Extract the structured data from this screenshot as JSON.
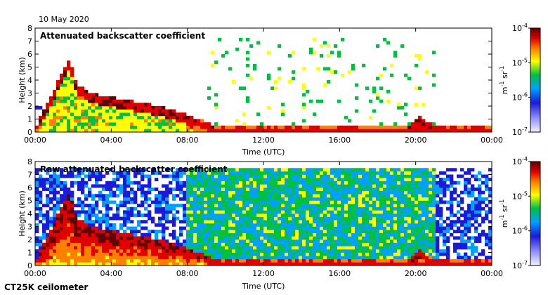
{
  "header": {
    "date": "10 May 2020"
  },
  "footer": {
    "instrument": "CT25K ceilometer"
  },
  "colors": {
    "axis": "#000000",
    "background": "#ffffff",
    "colormap": [
      "#f2f2ff",
      "#1a1ad9",
      "#00a0ff",
      "#00c040",
      "#ffff00",
      "#ff8000",
      "#e00000",
      "#600000"
    ]
  },
  "chart_data": [
    {
      "type": "heatmap",
      "title": "Attenuated backscatter coefficient",
      "xlabel": "Time (UTC)",
      "ylabel": "Height (km)",
      "x_ticks": [
        "00:00",
        "04:00",
        "08:00",
        "12:00",
        "16:00",
        "20:00",
        "00:00"
      ],
      "y_ticks": [
        "0",
        "1",
        "2",
        "3",
        "4",
        "5",
        "6",
        "7",
        "8"
      ],
      "xlim_hours": [
        0,
        24
      ],
      "ylim_km": [
        0,
        8
      ],
      "colorbar": {
        "label_base": "m",
        "label_exp1": "-1",
        "label_mid": " sr",
        "label_exp2": "-1",
        "scale": "log",
        "range": [
          1e-07,
          0.0001
        ],
        "ticks": [
          {
            "b": "10",
            "e": "-7"
          },
          {
            "b": "10",
            "e": "-6"
          },
          {
            "b": "10",
            "e": "-5"
          },
          {
            "b": "10",
            "e": "-4"
          }
        ]
      },
      "boundary_layer_height_km": [
        {
          "t": 0,
          "h": 0.2
        },
        {
          "t": 1.8,
          "h": 5.5
        },
        {
          "t": 2.2,
          "h": 3.5
        },
        {
          "t": 3,
          "h": 2.8
        },
        {
          "t": 5,
          "h": 2.3
        },
        {
          "t": 7,
          "h": 1.7
        },
        {
          "t": 8.5,
          "h": 0.9
        },
        {
          "t": 9.5,
          "h": 0.3
        },
        {
          "t": 19.5,
          "h": 0.25
        },
        {
          "t": 20.2,
          "h": 1.0
        },
        {
          "t": 21,
          "h": 0.3
        },
        {
          "t": 24,
          "h": 0.3
        }
      ]
    },
    {
      "type": "heatmap",
      "title": "Raw attenuated backscatter coefficient",
      "xlabel": "Time (UTC)",
      "ylabel": "Height (km)",
      "x_ticks": [
        "00:00",
        "04:00",
        "08:00",
        "12:00",
        "16:00",
        "20:00",
        "00:00"
      ],
      "y_ticks": [
        "0",
        "1",
        "2",
        "3",
        "4",
        "5",
        "6",
        "7",
        "8"
      ],
      "xlim_hours": [
        0,
        24
      ],
      "ylim_km": [
        0,
        8
      ],
      "colorbar": {
        "label_base": "m",
        "label_exp1": "-1",
        "label_mid": " sr",
        "label_exp2": "-1",
        "scale": "log",
        "range": [
          1e-07,
          0.0001
        ],
        "ticks": [
          {
            "b": "10",
            "e": "-7"
          },
          {
            "b": "10",
            "e": "-6"
          },
          {
            "b": "10",
            "e": "-5"
          },
          {
            "b": "10",
            "e": "-4"
          }
        ]
      },
      "boundary_layer_height_km": [
        {
          "t": 0,
          "h": 0.2
        },
        {
          "t": 1.8,
          "h": 5.5
        },
        {
          "t": 2.2,
          "h": 3.5
        },
        {
          "t": 3,
          "h": 2.8
        },
        {
          "t": 5,
          "h": 2.3
        },
        {
          "t": 7,
          "h": 1.7
        },
        {
          "t": 8.5,
          "h": 0.9
        },
        {
          "t": 9.5,
          "h": 0.3
        },
        {
          "t": 19.5,
          "h": 0.25
        },
        {
          "t": 20.2,
          "h": 1.0
        },
        {
          "t": 21,
          "h": 0.3
        },
        {
          "t": 24,
          "h": 0.3
        }
      ]
    }
  ]
}
